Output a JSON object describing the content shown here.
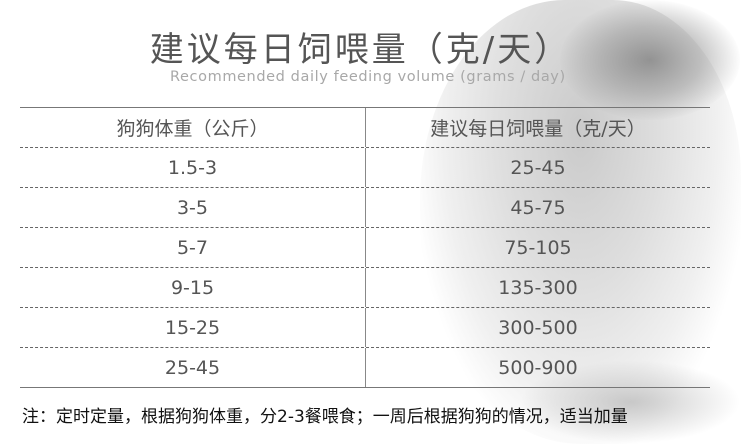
{
  "title": "建议每日饲喂量（克/天）",
  "subtitle": "Recommended daily feeding volume (grams / day)",
  "table": {
    "headers": [
      "狗狗体重（公斤）",
      "建议每日饲喂量（克/天）"
    ],
    "rows": [
      [
        "1.5-3",
        "25-45"
      ],
      [
        "3-5",
        "45-75"
      ],
      [
        "5-7",
        "75-105"
      ],
      [
        "9-15",
        "135-300"
      ],
      [
        "15-25",
        "300-500"
      ],
      [
        "25-45",
        "500-900"
      ]
    ]
  },
  "note": "注：定时定量，根据狗狗体重，分2-3餐喂食；一周后根据狗狗的情况，适当加量"
}
